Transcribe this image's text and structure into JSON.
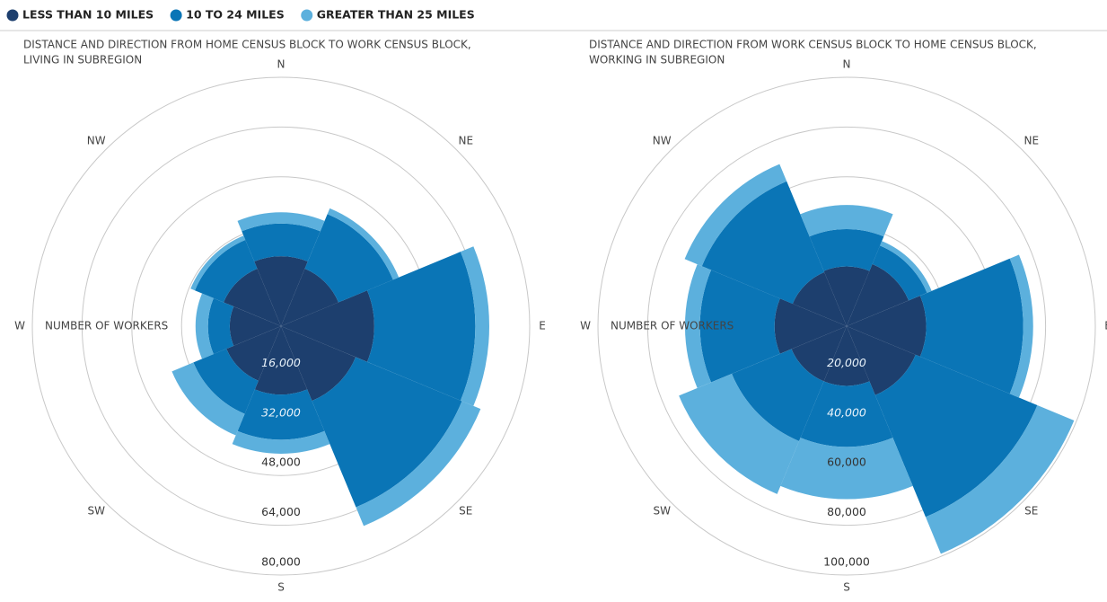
{
  "chart_data": [
    {
      "type": "polar_bar",
      "title": [
        "DISTANCE AND DIRECTION FROM HOME CENSUS BLOCK TO WORK CENSUS BLOCK,",
        "LIVING IN SUBREGION"
      ],
      "axis_label": "NUMBER OF WORKERS",
      "categories": [
        "N",
        "NE",
        "E",
        "SE",
        "S",
        "SW",
        "W",
        "NW"
      ],
      "series": [
        {
          "name": "LESS THAN 10 MILES",
          "color": "#1d3f6e",
          "values": [
            22500,
            20000,
            30000,
            26000,
            22000,
            19000,
            16500,
            20000
          ]
        },
        {
          "name": "10 TO 24 MILES",
          "color": "#0a75b6",
          "values": [
            10500,
            19000,
            32500,
            37000,
            14500,
            11500,
            7000,
            10000
          ]
        },
        {
          "name": "GREATER THAN 25 MILES",
          "color": "#5cb0dd",
          "values": [
            3600,
            2000,
            4500,
            6500,
            4500,
            7500,
            4000,
            1500
          ]
        }
      ],
      "rlim": [
        0,
        80000
      ],
      "rticks": [
        {
          "value": 16000,
          "label": "16,000"
        },
        {
          "value": 32000,
          "label": "32,000"
        },
        {
          "value": 48000,
          "label": "48,000"
        },
        {
          "value": 64000,
          "label": "64,000"
        },
        {
          "value": 80000,
          "label": "80,000"
        }
      ],
      "grid": true
    },
    {
      "type": "polar_bar",
      "title": [
        "DISTANCE AND DIRECTION FROM WORK CENSUS BLOCK TO HOME CENSUS BLOCK,",
        "WORKING IN SUBREGION"
      ],
      "axis_label": "NUMBER OF WORKERS",
      "categories": [
        "N",
        "NE",
        "E",
        "SE",
        "S",
        "SW",
        "W",
        "NW"
      ],
      "series": [
        {
          "name": "LESS THAN 10 MILES",
          "color": "#1d3f6e",
          "values": [
            24000,
            27000,
            32000,
            30000,
            24000,
            24000,
            29000,
            23500
          ]
        },
        {
          "name": "10 TO 24 MILES",
          "color": "#0a75b6",
          "values": [
            15000,
            8000,
            39000,
            53000,
            24500,
            26000,
            30000,
            39500
          ]
        },
        {
          "name": "GREATER THAN 25 MILES",
          "color": "#5cb0dd",
          "values": [
            9700,
            2000,
            4000,
            16000,
            21000,
            23000,
            6000,
            7500
          ]
        }
      ],
      "rlim": [
        0,
        100000
      ],
      "rticks": [
        {
          "value": 20000,
          "label": "20,000"
        },
        {
          "value": 40000,
          "label": "40,000"
        },
        {
          "value": 60000,
          "label": "60,000"
        },
        {
          "value": 80000,
          "label": "80,000"
        },
        {
          "value": 100000,
          "label": "100,000"
        }
      ],
      "grid": true
    }
  ]
}
